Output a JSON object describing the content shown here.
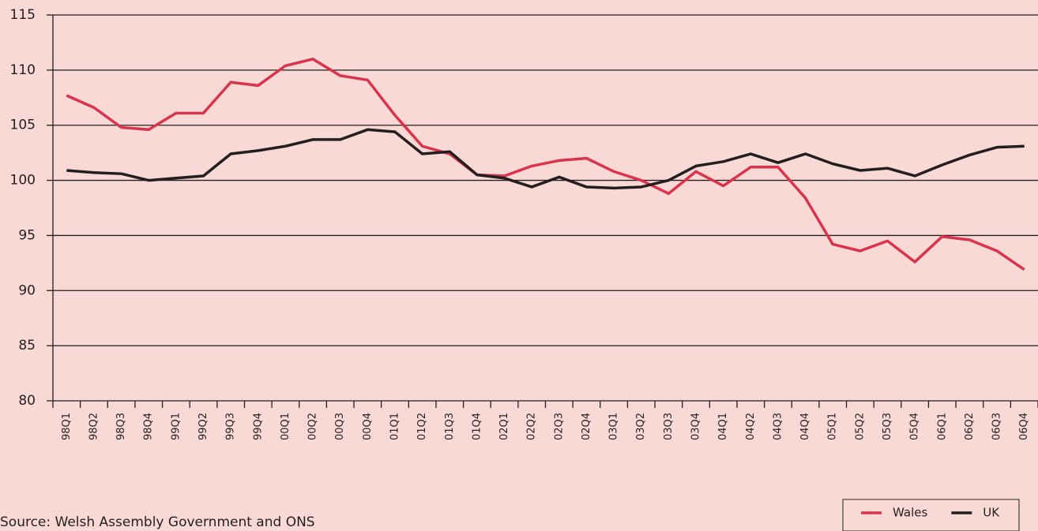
{
  "chart_data": {
    "type": "line",
    "categories": [
      "98Q1",
      "98Q2",
      "98Q3",
      "98Q4",
      "99Q1",
      "99Q2",
      "99Q3",
      "99Q4",
      "00Q1",
      "00Q2",
      "00Q3",
      "00Q4",
      "01Q1",
      "01Q2",
      "01Q3",
      "01Q4",
      "02Q1",
      "02Q2",
      "02Q3",
      "02Q4",
      "03Q1",
      "03Q2",
      "03Q3",
      "03Q4",
      "04Q1",
      "04Q2",
      "04Q3",
      "04Q4",
      "05Q1",
      "05Q2",
      "05Q3",
      "05Q4",
      "06Q1",
      "06Q2",
      "06Q3",
      "06Q4"
    ],
    "series": [
      {
        "name": "Wales",
        "color": "#d9344c",
        "values": [
          107.7,
          106.6,
          104.8,
          104.6,
          106.1,
          106.1,
          108.9,
          108.6,
          110.4,
          111.0,
          109.5,
          109.1,
          105.9,
          103.1,
          102.4,
          100.5,
          100.4,
          101.3,
          101.8,
          102.0,
          100.8,
          100.0,
          98.8,
          100.8,
          99.5,
          101.2,
          101.2,
          98.4,
          94.2,
          93.6,
          94.5,
          92.6,
          94.9,
          94.6,
          93.6,
          91.9
        ]
      },
      {
        "name": "UK",
        "color": "#231f20",
        "values": [
          100.9,
          100.7,
          100.6,
          100.0,
          100.2,
          100.4,
          102.4,
          102.7,
          103.1,
          103.7,
          103.7,
          104.6,
          104.4,
          102.4,
          102.6,
          100.5,
          100.2,
          99.4,
          100.3,
          99.4,
          99.3,
          99.4,
          100.0,
          101.3,
          101.7,
          102.4,
          101.6,
          102.4,
          101.5,
          100.9,
          101.1,
          100.4,
          101.4,
          102.3,
          103.0,
          103.1
        ]
      }
    ],
    "ylim": [
      80,
      115
    ],
    "yticks": [
      80,
      85,
      90,
      95,
      100,
      105,
      110,
      115
    ],
    "grid": true,
    "legend": "bottom-right",
    "source": "Source: Welsh Assembly Government and ONS"
  }
}
